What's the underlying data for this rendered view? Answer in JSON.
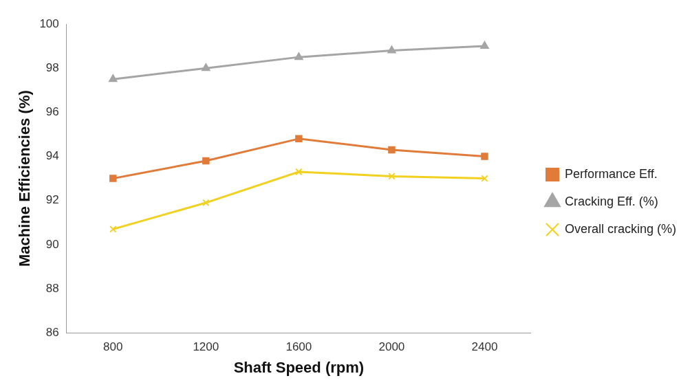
{
  "chart_data": {
    "type": "line",
    "xlabel": "Shaft Speed (rpm)",
    "ylabel": "Machine Efficiencies (%)",
    "categories": [
      "800",
      "1200",
      "1600",
      "2000",
      "2400"
    ],
    "series": [
      {
        "name": "Performance Eff.",
        "color": "#e07b39",
        "marker": "square",
        "values": [
          93.0,
          93.8,
          94.8,
          94.3,
          94.0
        ]
      },
      {
        "name": "Cracking Eff. (%)",
        "color": "#a5a5a5",
        "marker": "triangle",
        "values": [
          97.5,
          98.0,
          98.5,
          98.8,
          99.0
        ]
      },
      {
        "name": "Overall cracking (%)",
        "color": "#f2d01e",
        "marker": "cross",
        "values": [
          90.7,
          91.9,
          93.3,
          93.1,
          93.0
        ]
      }
    ],
    "ylim": [
      86,
      100
    ],
    "yticks": [
      86,
      88,
      90,
      92,
      94,
      96,
      98,
      100
    ],
    "grid": false,
    "legend": "right",
    "line_style": "solid"
  }
}
